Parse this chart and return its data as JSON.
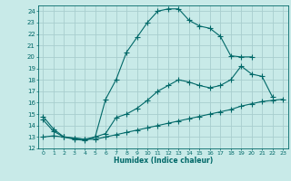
{
  "xlabel": "Humidex (Indice chaleur)",
  "bg_color": "#c8eae8",
  "grid_color": "#a8cece",
  "line_color": "#006868",
  "xlim": [
    -0.5,
    23.5
  ],
  "ylim": [
    12,
    24.5
  ],
  "yticks": [
    12,
    13,
    14,
    15,
    16,
    17,
    18,
    19,
    20,
    21,
    22,
    23,
    24
  ],
  "xticks": [
    0,
    1,
    2,
    3,
    4,
    5,
    6,
    7,
    8,
    9,
    10,
    11,
    12,
    13,
    14,
    15,
    16,
    17,
    18,
    19,
    20,
    21,
    22,
    23
  ],
  "line1_x": [
    0,
    1,
    2,
    3,
    4,
    5,
    6,
    7,
    8,
    9,
    10,
    11,
    12,
    13,
    14,
    15,
    16,
    17,
    18,
    19,
    20
  ],
  "line1_y": [
    14.8,
    13.7,
    13.0,
    12.8,
    12.7,
    13.0,
    16.3,
    18.0,
    20.4,
    21.7,
    23.0,
    24.0,
    24.2,
    24.2,
    23.2,
    22.7,
    22.5,
    21.8,
    20.1,
    20.0,
    20.0
  ],
  "line2_x": [
    0,
    1,
    2,
    3,
    4,
    5,
    6,
    7,
    8,
    9,
    10,
    11,
    12,
    13,
    14,
    15,
    16,
    17,
    18,
    19,
    20,
    21,
    22
  ],
  "line2_y": [
    14.5,
    13.5,
    13.0,
    12.9,
    12.8,
    13.0,
    13.3,
    14.7,
    15.0,
    15.5,
    16.2,
    17.0,
    17.5,
    18.0,
    17.8,
    17.5,
    17.3,
    17.5,
    18.0,
    19.2,
    18.5,
    18.3,
    16.5
  ],
  "line3_x": [
    0,
    1,
    2,
    3,
    4,
    5,
    6,
    7,
    8,
    9,
    10,
    11,
    12,
    13,
    14,
    15,
    16,
    17,
    18,
    19,
    20,
    21,
    22,
    23
  ],
  "line3_y": [
    13.0,
    13.1,
    13.0,
    12.9,
    12.8,
    12.8,
    13.0,
    13.2,
    13.4,
    13.6,
    13.8,
    14.0,
    14.2,
    14.4,
    14.6,
    14.8,
    15.0,
    15.2,
    15.4,
    15.7,
    15.9,
    16.1,
    16.2,
    16.3
  ]
}
